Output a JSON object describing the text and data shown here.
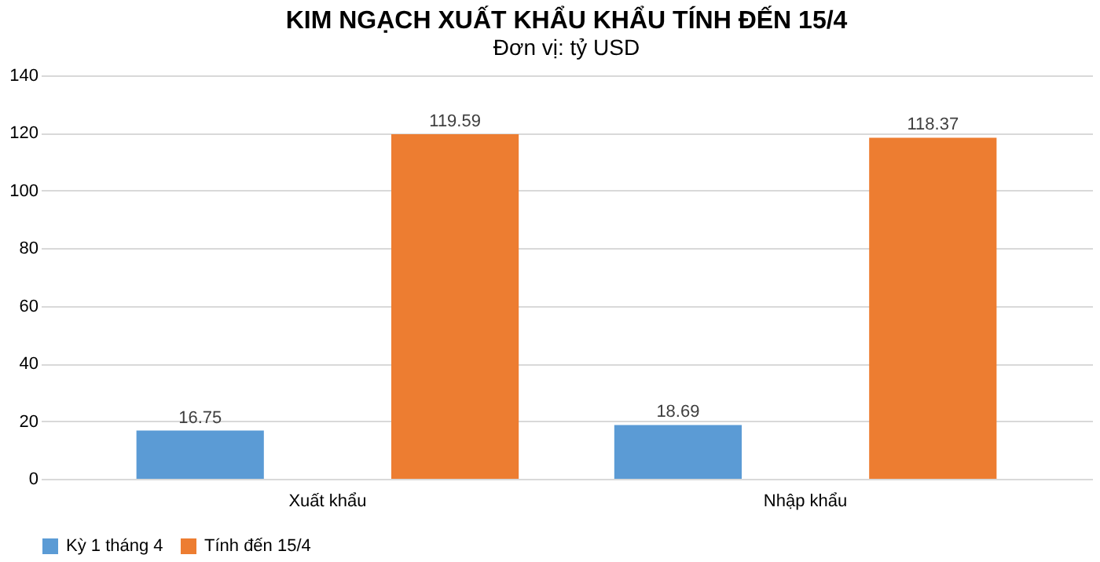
{
  "chart_data": {
    "type": "bar",
    "title": "KIM NGẠCH XUẤT KHẨU KHẨU TÍNH ĐẾN 15/4",
    "subtitle": "Đơn vị: tỷ USD",
    "categories": [
      "Xuất khẩu",
      "Nhập khẩu"
    ],
    "series": [
      {
        "name": "Kỳ 1 tháng 4",
        "color": "#5b9bd5",
        "values": [
          16.75,
          18.69
        ]
      },
      {
        "name": "Tính đến 15/4",
        "color": "#ed7d31",
        "values": [
          119.59,
          118.37
        ]
      }
    ],
    "ylim": [
      0,
      140
    ],
    "yticks": [
      0,
      20,
      40,
      60,
      80,
      100,
      120,
      140
    ],
    "grid": "y",
    "legend": "bottom",
    "data_labels": true
  }
}
